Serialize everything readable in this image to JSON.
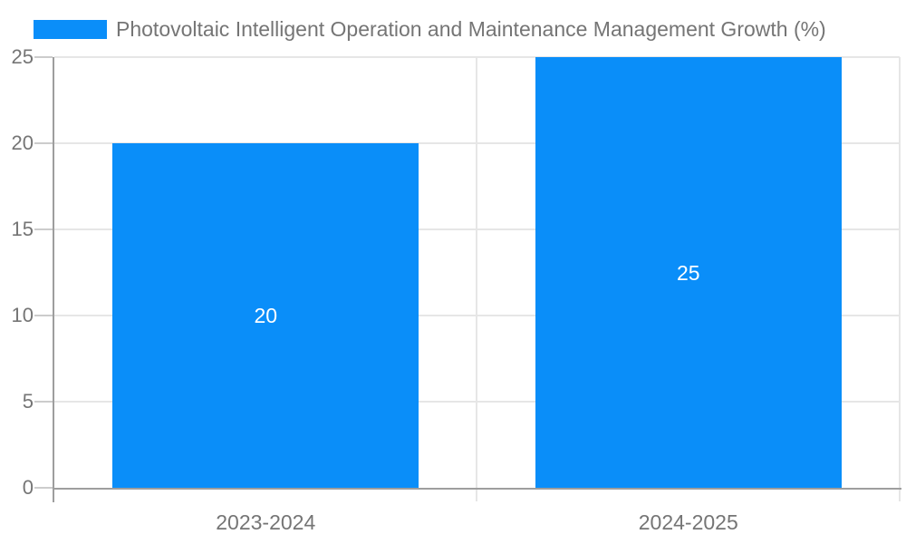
{
  "chart_data": {
    "type": "bar",
    "title": "Photovoltaic Intelligent Operation and Maintenance Management Growth (%)",
    "legend": {
      "position": "top-left",
      "entries": [
        "Photovoltaic Intelligent Operation and Maintenance Management Growth (%)"
      ]
    },
    "categories": [
      "2023-2024",
      "2024-2025"
    ],
    "values": [
      20,
      25
    ],
    "bar_labels": [
      "20",
      "25"
    ],
    "xlabel": "",
    "ylabel": "",
    "ylim": [
      0,
      25
    ],
    "yticks": [
      0,
      5,
      10,
      15,
      20,
      25
    ],
    "grid": true,
    "colors": {
      "bar": "#0a8ef9",
      "grid": "#e6e6e6",
      "axis": "#9e9e9e",
      "tick": "#cccccc",
      "text": "#757575",
      "bar_label": "#ffffff",
      "background": "#ffffff"
    }
  }
}
